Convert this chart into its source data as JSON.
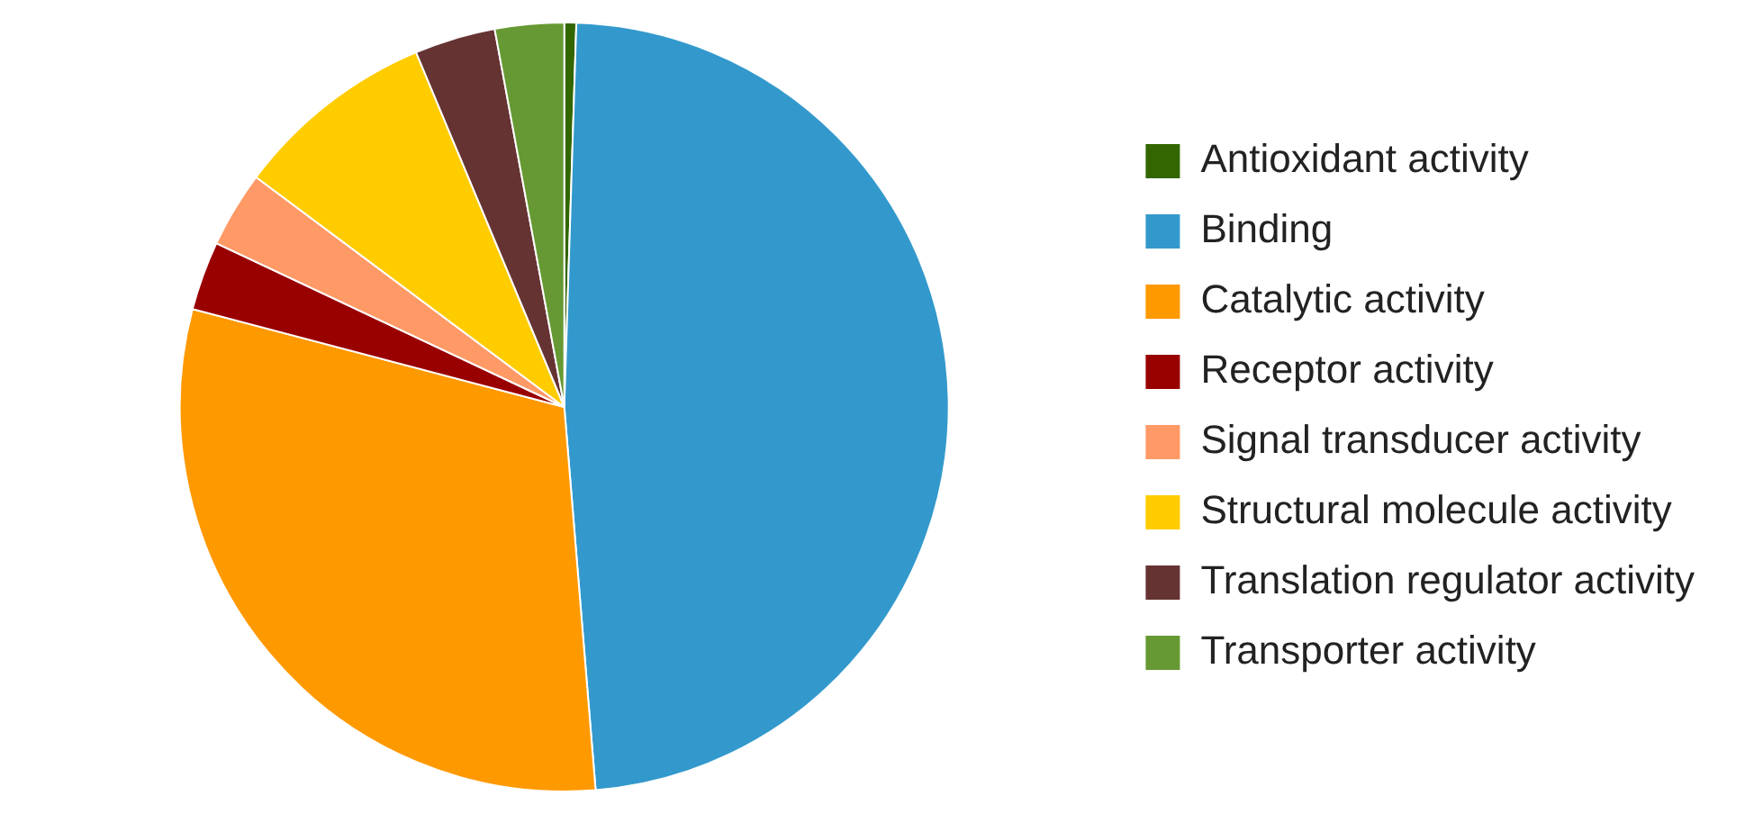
{
  "chart_data": {
    "type": "pie",
    "categories": [
      "Antioxidant activity",
      "Binding",
      "Catalytic activity",
      "Receptor activity",
      "Signal transducer activity",
      "Structural molecule activity",
      "Translation regulator activity",
      "Transporter activity"
    ],
    "values": [
      0.5,
      48.2,
      30.4,
      2.9,
      3.2,
      8.5,
      3.4,
      2.9
    ],
    "colors": [
      "#336600",
      "#3399cc",
      "#ff9900",
      "#990000",
      "#ff9966",
      "#ffcc00",
      "#663333",
      "#669933"
    ],
    "legend": "right"
  }
}
